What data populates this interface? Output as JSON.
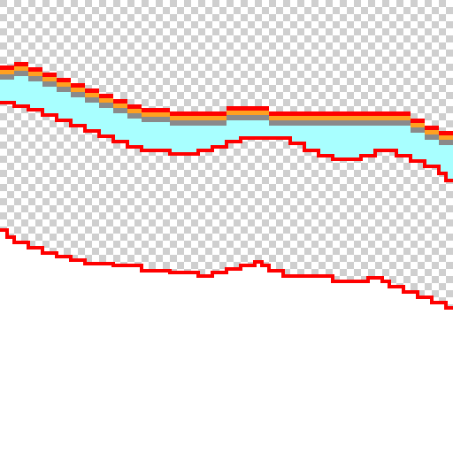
{
  "colors": {
    "checker_light": "#ffffff",
    "checker_dark": "#cfcfcf",
    "red": "#ff0000",
    "orange": "#ffa020",
    "gray": "#8a8a8a",
    "cyan": "#a8ffff",
    "white": "#ffffff"
  },
  "layers": [
    "transparency-checkerboard",
    "red-top-outline",
    "orange-stripe",
    "gray-stripe",
    "cyan-band",
    "red-lower-outline",
    "red-bottom-outline",
    "white-fill"
  ]
}
